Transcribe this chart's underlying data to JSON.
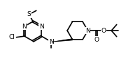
{
  "background_color": "#ffffff",
  "line_color": "#000000",
  "bond_width": 1.2,
  "figsize": [
    2.0,
    0.98
  ],
  "dpi": 100,
  "xlim": [
    0,
    10
  ],
  "ylim": [
    0,
    5
  ]
}
